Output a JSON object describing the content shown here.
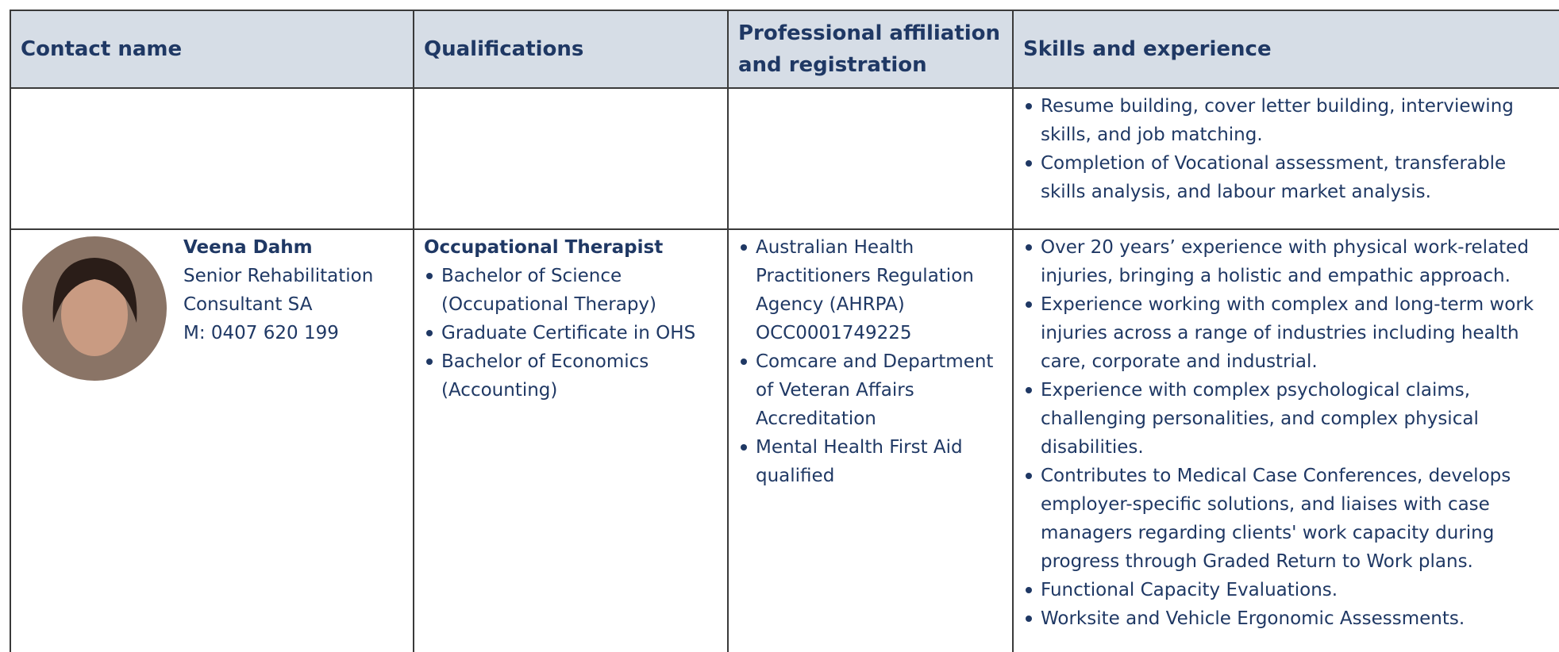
{
  "header": {
    "columns": [
      "Contact name",
      "Qualifications",
      "Professional affiliation and registration",
      "Skills and experience"
    ]
  },
  "rows": [
    {
      "skills": [
        "Resume building, cover letter building, interviewing skills, and job matching.",
        "Completion of Vocational assessment, transferable skills analysis, and labour market analysis."
      ]
    },
    {
      "contact": {
        "name": "Veena Dahm",
        "role": "Senior Rehabilitation Consultant SA",
        "phone": "M: 0407 620 199"
      },
      "qualifications": {
        "title": "Occupational Therapist",
        "items": [
          "Bachelor of Science (Occupational Therapy)",
          "Graduate Certificate in OHS",
          "Bachelor of Economics (Accounting)"
        ]
      },
      "affiliations": [
        "Australian Health Practitioners Regulation Agency (AHRPA) OCC0001749225",
        "Comcare and Department of Veteran Affairs Accreditation",
        "Mental Health First Aid qualified"
      ],
      "skills": [
        "Over 20 years’ experience with physical work-related injuries, bringing a holistic and empathic approach.",
        "Experience working with complex and long-term work injuries across a range of industries including health care, corporate and industrial.",
        "Experience with complex psychological claims, challenging personalities, and complex physical disabilities.",
        "Contributes to Medical Case Conferences, develops employer-specific solutions, and liaises with case managers regarding clients' work capacity during progress through Graded Return to Work plans.",
        "Functional Capacity Evaluations.",
        "Worksite and Vehicle Ergonomic Assessments."
      ]
    }
  ]
}
